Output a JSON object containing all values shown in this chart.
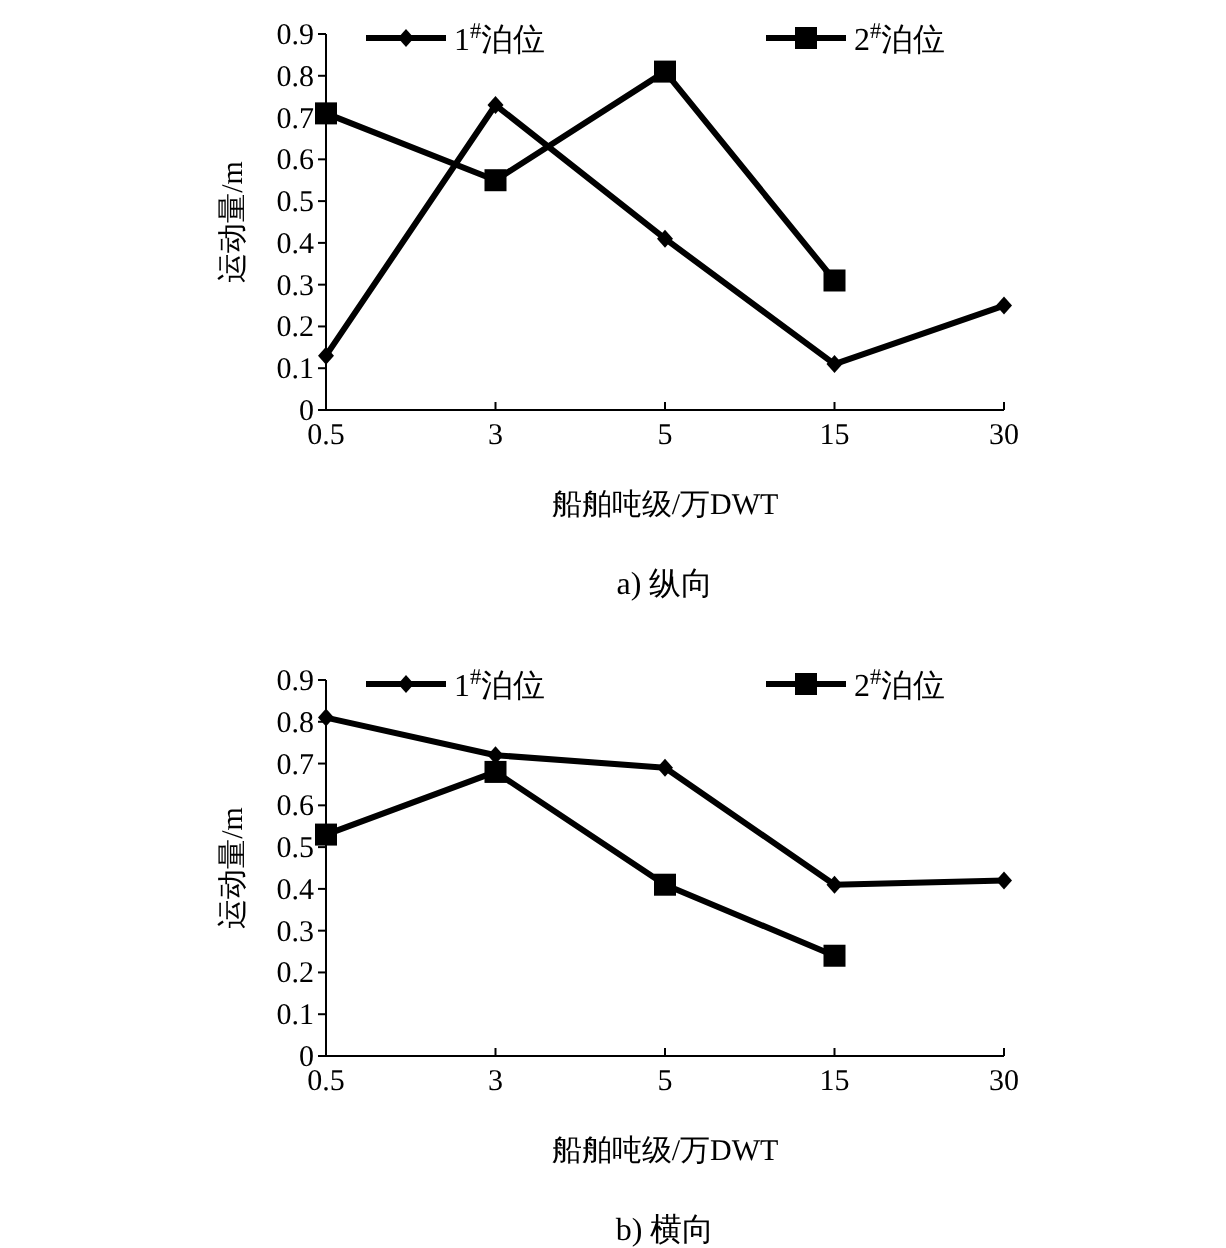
{
  "chart_data": [
    {
      "type": "line",
      "title": "a) 纵向",
      "xlabel": "船舶吨级/万DWT",
      "ylabel": "运动量/m",
      "categories": [
        "0.5",
        "3",
        "5",
        "15",
        "30"
      ],
      "ylim": [
        0,
        0.9
      ],
      "yticks": [
        0,
        0.1,
        0.2,
        0.3,
        0.4,
        0.5,
        0.6,
        0.7,
        0.8,
        0.9
      ],
      "legend": "top",
      "grid": false,
      "series": [
        {
          "name": "1$^{#}$泊位",
          "color": "#000000",
          "marker": "diamond",
          "values": [
            0.13,
            0.73,
            0.41,
            0.11,
            0.25
          ]
        },
        {
          "name": "2$^{#}$泊位",
          "color": "#000000",
          "marker": "square",
          "values": [
            0.71,
            0.55,
            0.81,
            0.31,
            null
          ]
        }
      ]
    },
    {
      "type": "line",
      "title": "b) 横向",
      "xlabel": "船舶吨级/万DWT",
      "ylabel": "运动量/m",
      "categories": [
        "0.5",
        "3",
        "5",
        "15",
        "30"
      ],
      "ylim": [
        0,
        0.9
      ],
      "yticks": [
        0,
        0.1,
        0.2,
        0.3,
        0.4,
        0.5,
        0.6,
        0.7,
        0.8,
        0.9
      ],
      "legend": "top",
      "grid": false,
      "series": [
        {
          "name": "1$^{#}$泊位",
          "color": "#000000",
          "marker": "diamond",
          "values": [
            0.81,
            0.72,
            0.69,
            0.41,
            0.42
          ]
        },
        {
          "name": "2$^{#}$泊位",
          "color": "#000000",
          "marker": "square",
          "values": [
            0.53,
            0.68,
            0.41,
            0.24,
            null
          ]
        }
      ]
    }
  ]
}
